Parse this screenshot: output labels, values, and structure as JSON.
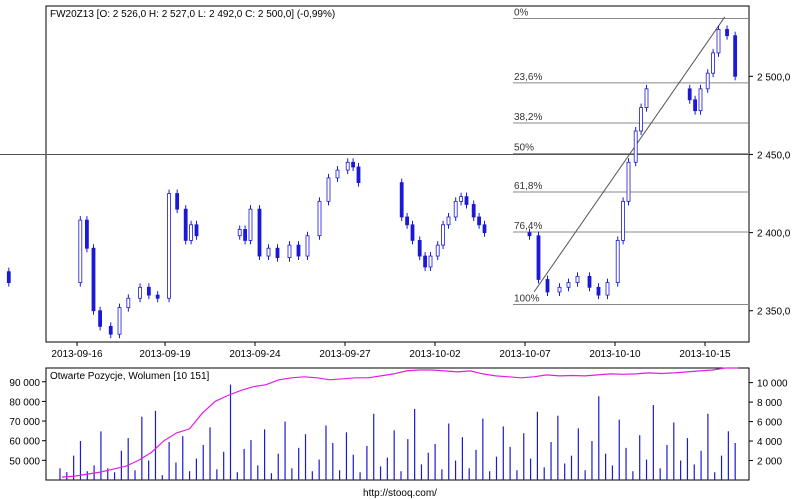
{
  "chart_data": [
    {
      "type": "candlestick",
      "title": "FW20Z13 [O: 2 526,0  H: 2 527,0  L: 2 492,0  C: 2 500,0] (-0,99%)",
      "x_ticks": [
        "2013-09-16",
        "2013-09-19",
        "2013-09-24",
        "2013-09-27",
        "2013-10-02",
        "2013-10-07",
        "2013-10-10",
        "2013-10-15"
      ],
      "y_ticks": [
        "2 350,0",
        "2 400,0",
        "2 450,0",
        "2 500,0"
      ],
      "ylim": [
        2330,
        2545
      ],
      "horizontal_line": 2450,
      "fibonacci": {
        "from": 2354,
        "to": 2537,
        "levels": [
          {
            "label": "0%",
            "value": 2537
          },
          {
            "label": "23,6%",
            "value": 2495.8
          },
          {
            "label": "38,2%",
            "value": 2470.1
          },
          {
            "label": "50%",
            "value": 2450.5
          },
          {
            "label": "61,8%",
            "value": 2426.0
          },
          {
            "label": "76,4%",
            "value": 2400.4
          },
          {
            "label": "100%",
            "value": 2354
          }
        ]
      },
      "trend_line": {
        "from": {
          "x": "2013-10-07",
          "y": 2362
        },
        "to": {
          "x": "2013-10-15",
          "y": 2538
        }
      },
      "series": [
        {
          "values": [
            {
              "x": "2013-09-13",
              "y": 2375
            },
            {
              "x": "2013-09-13",
              "y": 2368
            },
            {
              "x": "2013-09-16",
              "y": 2408
            },
            {
              "x": "2013-09-16",
              "y": 2390
            },
            {
              "x": "2013-09-16",
              "y": 2350
            },
            {
              "x": "2013-09-16",
              "y": 2340
            },
            {
              "x": "2013-09-17",
              "y": 2335
            },
            {
              "x": "2013-09-17",
              "y": 2352
            },
            {
              "x": "2013-09-17",
              "y": 2358
            },
            {
              "x": "2013-09-18",
              "y": 2365
            },
            {
              "x": "2013-09-18",
              "y": 2360
            },
            {
              "x": "2013-09-18",
              "y": 2358
            },
            {
              "x": "2013-09-19",
              "y": 2425
            },
            {
              "x": "2013-09-19",
              "y": 2415
            },
            {
              "x": "2013-09-20",
              "y": 2395
            },
            {
              "x": "2013-09-20",
              "y": 2405
            },
            {
              "x": "2013-09-20",
              "y": 2398
            },
            {
              "x": "2013-09-23",
              "y": 2402
            },
            {
              "x": "2013-09-23",
              "y": 2395
            },
            {
              "x": "2013-09-23",
              "y": 2415
            },
            {
              "x": "2013-09-24",
              "y": 2385
            },
            {
              "x": "2013-09-24",
              "y": 2390
            },
            {
              "x": "2013-09-24",
              "y": 2384
            },
            {
              "x": "2013-09-25",
              "y": 2392
            },
            {
              "x": "2013-09-25",
              "y": 2385
            },
            {
              "x": "2013-09-25",
              "y": 2398
            },
            {
              "x": "2013-09-26",
              "y": 2420
            },
            {
              "x": "2013-09-26",
              "y": 2435
            },
            {
              "x": "2013-09-26",
              "y": 2440
            },
            {
              "x": "2013-09-27",
              "y": 2445
            },
            {
              "x": "2013-09-27",
              "y": 2442
            },
            {
              "x": "2013-09-27",
              "y": 2432
            },
            {
              "x": "2013-09-30",
              "y": 2410
            },
            {
              "x": "2013-09-30",
              "y": 2405
            },
            {
              "x": "2013-09-30",
              "y": 2395
            },
            {
              "x": "2013-10-01",
              "y": 2385
            },
            {
              "x": "2013-10-01",
              "y": 2378
            },
            {
              "x": "2013-10-01",
              "y": 2385
            },
            {
              "x": "2013-10-02",
              "y": 2392
            },
            {
              "x": "2013-10-02",
              "y": 2405
            },
            {
              "x": "2013-10-02",
              "y": 2410
            },
            {
              "x": "2013-10-03",
              "y": 2420
            },
            {
              "x": "2013-10-03",
              "y": 2423
            },
            {
              "x": "2013-10-03",
              "y": 2418
            },
            {
              "x": "2013-10-04",
              "y": 2410
            },
            {
              "x": "2013-10-04",
              "y": 2405
            },
            {
              "x": "2013-10-04",
              "y": 2400
            },
            {
              "x": "2013-10-07",
              "y": 2398
            },
            {
              "x": "2013-10-07",
              "y": 2370
            },
            {
              "x": "2013-10-07",
              "y": 2362
            },
            {
              "x": "2013-10-08",
              "y": 2365
            },
            {
              "x": "2013-10-08",
              "y": 2368
            },
            {
              "x": "2013-10-08",
              "y": 2372
            },
            {
              "x": "2013-10-09",
              "y": 2365
            },
            {
              "x": "2013-10-09",
              "y": 2360
            },
            {
              "x": "2013-10-09",
              "y": 2368
            },
            {
              "x": "2013-10-10",
              "y": 2395
            },
            {
              "x": "2013-10-10",
              "y": 2420
            },
            {
              "x": "2013-10-10",
              "y": 2445
            },
            {
              "x": "2013-10-11",
              "y": 2465
            },
            {
              "x": "2013-10-11",
              "y": 2480
            },
            {
              "x": "2013-10-11",
              "y": 2492
            },
            {
              "x": "2013-10-14",
              "y": 2485
            },
            {
              "x": "2013-10-14",
              "y": 2478
            },
            {
              "x": "2013-10-14",
              "y": 2492
            },
            {
              "x": "2013-10-15",
              "y": 2502
            },
            {
              "x": "2013-10-15",
              "y": 2515
            },
            {
              "x": "2013-10-15",
              "y": 2530
            },
            {
              "x": "2013-10-16",
              "y": 2526
            },
            {
              "x": "2013-10-16",
              "y": 2500
            }
          ]
        }
      ]
    },
    {
      "type": "bar",
      "title": "Otwarte Pozycje, Wolumen [10 151]",
      "y_ticks_left": [
        "50 000",
        "60 000",
        "70 000",
        "80 000",
        "90 000"
      ],
      "y_ticks_right": [
        "2 000",
        "4 000",
        "6 000",
        "8 000",
        "10 000"
      ],
      "ylim_left": [
        40000,
        97000
      ],
      "ylim_right": [
        0,
        11500
      ],
      "series": [
        {
          "name": "Wolumen",
          "values": [
            1200,
            800,
            2500,
            4000,
            900,
            1500,
            5000,
            1200,
            800,
            3000,
            4300,
            1000,
            6500,
            2000,
            7100,
            500,
            3900,
            1800,
            4500,
            900,
            2200,
            3600,
            5400,
            1100,
            2900,
            9800,
            800,
            3200,
            4100,
            1500,
            5200,
            700,
            2700,
            6000,
            1200,
            3300,
            4700,
            900,
            2100,
            5600,
            3800,
            1000,
            4900,
            2600,
            800,
            3500,
            6800,
            1400,
            2300,
            5100,
            900,
            4200,
            7300,
            1600,
            2800,
            3700,
            1100,
            5800,
            2000,
            4400,
            1200,
            3100,
            6300,
            900,
            2400,
            5500,
            3400,
            1000,
            4800,
            2200,
            7000,
            1300,
            3900,
            6600,
            1700,
            2500,
            5300,
            1000,
            4000,
            8600,
            2700,
            1500,
            6200,
            3300,
            900,
            4600,
            2100,
            7700,
            1200,
            3600,
            5900,
            2000,
            4300,
            1600,
            3000,
            6800,
            800,
            2500,
            5000,
            3800
          ]
        },
        {
          "name": "Otwarte Pozycje",
          "values": [
            41500,
            42000,
            43000,
            44000,
            45500,
            47000,
            50000,
            54000,
            60000,
            64000,
            66000,
            74000,
            80000,
            83000,
            85500,
            87500,
            88500,
            91000,
            92000,
            92500,
            92000,
            91000,
            91500,
            92000,
            92000,
            93000,
            94000,
            95500,
            96000,
            96000,
            95500,
            95000,
            95500,
            94000,
            93000,
            92500,
            92000,
            92500,
            93500,
            93000,
            93200,
            93000,
            93500,
            94000,
            93800,
            94000,
            94500,
            94200,
            94500,
            95000,
            95500,
            96000,
            97000,
            97000
          ]
        }
      ]
    }
  ],
  "footer": {
    "url": "http://stooq.com/"
  }
}
